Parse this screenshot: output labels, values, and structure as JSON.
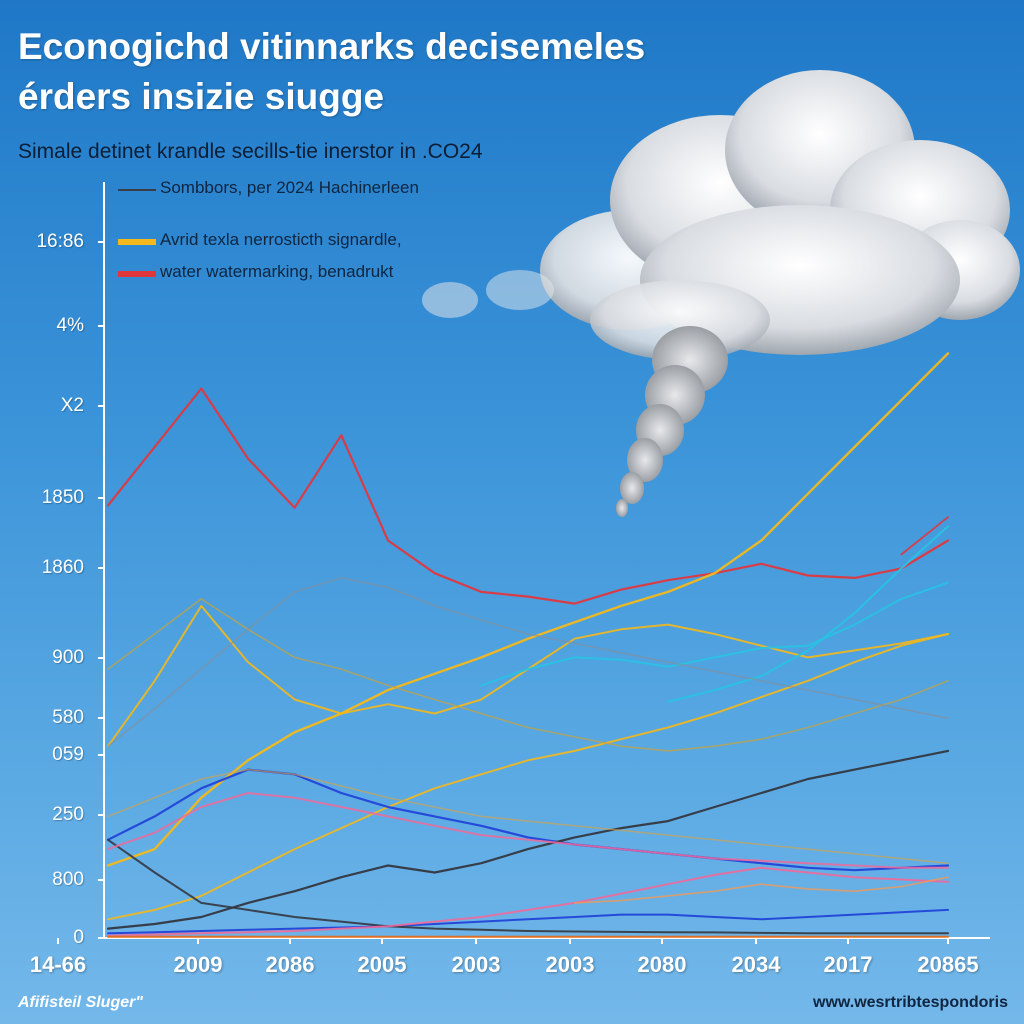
{
  "title_line1": "Econogichd vitinnarks decisemeles",
  "title_line2": "érders insizie siugge",
  "subtitle": "Simale detinet krandle secills-tie inerstor in .CO24",
  "footer_left": "Afifisteil Sluger\"",
  "footer_right": "www.wesrtribtespondoris",
  "colors": {
    "background_top": "#1f78c7",
    "background_bottom": "#74b8ea",
    "red": "#e0373d",
    "orange": "#f3b81b",
    "cyan": "#27c3e4",
    "dark": "#34373f",
    "pink": "#f06a9a",
    "blue": "#2245d8"
  },
  "legend": [
    {
      "label": "Sombbors, per 2024 Hachinerleen",
      "color": "#3b3d44",
      "style": "line"
    },
    {
      "label": "Avrid texla nerrosticth signardle,",
      "color": "#f3b81b",
      "style": "bar"
    },
    {
      "label": "water watermarking, benadrukt",
      "color": "#e0373d",
      "style": "bar"
    }
  ],
  "chart_data": {
    "type": "line",
    "title": "Econogichd vitinnarks decisemeles érders insizie siugge",
    "subtitle": "Simale detinet krandle secills-tie inerstor in .CO24",
    "y_tick_labels": [
      "16:86",
      "4%",
      "X2",
      "1850",
      "1860",
      "900",
      "580",
      "059",
      "250",
      "800",
      "0"
    ],
    "x_tick_labels": [
      "14-66",
      "2009",
      "2086",
      "2005",
      "2003",
      "2003",
      "2080",
      "2034",
      "2017",
      "20865"
    ],
    "grid": false,
    "legend_position": "top-left",
    "x": [
      0,
      0.5,
      1,
      1.5,
      2,
      2.5,
      3,
      3.5,
      4,
      4.5,
      5,
      5.5,
      6,
      6.5,
      7,
      7.5,
      8,
      8.5,
      9
    ],
    "series": [
      {
        "name": "water watermarking, benadrukt",
        "color": "#e0373d",
        "width": 2.2,
        "opacity": 0.95,
        "values": [
          1850,
          2100,
          2350,
          2050,
          1840,
          2150,
          1700,
          1560,
          1480,
          1460,
          1430,
          1490,
          1530,
          1560,
          1600,
          1550,
          1540,
          1580,
          1700
        ]
      },
      {
        "color": "#e0373d",
        "width": 1.8,
        "opacity": 0.9,
        "values": [
          null,
          null,
          null,
          null,
          null,
          null,
          null,
          null,
          null,
          null,
          null,
          null,
          null,
          null,
          null,
          null,
          null,
          1640,
          1800
        ]
      },
      {
        "name": "Avrid texla nerrosticth signardle,",
        "color": "#f3b81b",
        "width": 2.4,
        "opacity": 0.95,
        "values": [
          310,
          380,
          600,
          760,
          880,
          960,
          1060,
          1130,
          1200,
          1280,
          1350,
          1420,
          1480,
          1560,
          1700,
          1900,
          2100,
          2300,
          2500
        ]
      },
      {
        "color": "#f3b81b",
        "width": 2.0,
        "opacity": 0.9,
        "values": [
          820,
          1100,
          1420,
          1180,
          1020,
          960,
          1000,
          960,
          1020,
          1150,
          1280,
          1320,
          1340,
          1300,
          1250,
          1200,
          1230,
          1260,
          1300
        ]
      },
      {
        "color": "#f3b81b",
        "width": 2.0,
        "opacity": 0.9,
        "values": [
          80,
          120,
          180,
          280,
          380,
          470,
          560,
          640,
          700,
          760,
          800,
          850,
          900,
          960,
          1030,
          1100,
          1180,
          1250,
          1300
        ]
      },
      {
        "color": "#27c3e4",
        "width": 2.0,
        "opacity": 0.95,
        "values": [
          null,
          null,
          null,
          null,
          null,
          null,
          null,
          null,
          null,
          null,
          null,
          null,
          1010,
          1060,
          1120,
          1230,
          1390,
          1580,
          1760
        ]
      },
      {
        "color": "#27c3e4",
        "width": 2.0,
        "opacity": 0.9,
        "values": [
          null,
          null,
          null,
          null,
          null,
          null,
          null,
          null,
          1080,
          1150,
          1200,
          1190,
          1160,
          1200,
          1240,
          1250,
          1340,
          1450,
          1520
        ]
      },
      {
        "color": "#2245d8",
        "width": 2.2,
        "opacity": 0.95,
        "values": [
          420,
          520,
          640,
          720,
          700,
          620,
          560,
          520,
          480,
          430,
          400,
          380,
          360,
          340,
          320,
          300,
          290,
          300,
          310
        ]
      },
      {
        "color": "#2245d8",
        "width": 2.0,
        "opacity": 0.95,
        "values": [
          20,
          25,
          30,
          35,
          40,
          45,
          50,
          60,
          70,
          80,
          90,
          100,
          100,
          90,
          80,
          90,
          100,
          110,
          120
        ]
      },
      {
        "name": "Sombbors, per 2024 Hachinerleen",
        "color": "#34373f",
        "width": 2.2,
        "opacity": 0.95,
        "values": [
          40,
          60,
          90,
          150,
          200,
          260,
          310,
          280,
          320,
          380,
          430,
          470,
          500,
          560,
          620,
          680,
          720,
          760,
          800
        ]
      },
      {
        "color": "#34373f",
        "width": 2.0,
        "opacity": 0.9,
        "values": [
          420,
          280,
          150,
          120,
          90,
          70,
          50,
          40,
          35,
          30,
          28,
          26,
          25,
          24,
          22,
          20,
          20,
          20,
          20
        ]
      },
      {
        "color": "#f06a9a",
        "width": 2.0,
        "opacity": 0.9,
        "values": [
          10,
          15,
          20,
          25,
          30,
          40,
          50,
          70,
          90,
          120,
          150,
          190,
          230,
          270,
          300,
          280,
          260,
          250,
          240
        ]
      },
      {
        "color": "#f06a9a",
        "width": 2.0,
        "opacity": 0.85,
        "values": [
          380,
          450,
          560,
          620,
          600,
          560,
          520,
          480,
          440,
          420,
          400,
          380,
          360,
          340,
          330,
          320,
          310,
          300,
          300
        ]
      },
      {
        "color": "#c9a23a",
        "width": 1.6,
        "opacity": 0.7,
        "values": [
          1150,
          1300,
          1450,
          1320,
          1200,
          1150,
          1080,
          1020,
          960,
          900,
          860,
          820,
          800,
          820,
          850,
          900,
          960,
          1020,
          1100
        ]
      },
      {
        "color": "#8a8d96",
        "width": 1.6,
        "opacity": 0.6,
        "values": [
          820,
          980,
          1150,
          1320,
          1480,
          1540,
          1500,
          1420,
          1360,
          1300,
          1260,
          1220,
          1180,
          1140,
          1100,
          1060,
          1020,
          980,
          940
        ]
      },
      {
        "color": "#e0a23a",
        "width": 1.5,
        "opacity": 0.6,
        "values": [
          520,
          600,
          680,
          720,
          700,
          650,
          600,
          560,
          520,
          500,
          480,
          460,
          440,
          420,
          400,
          380,
          360,
          340,
          320
        ]
      },
      {
        "color": "#f39a55",
        "width": 1.6,
        "opacity": 0.8,
        "values": [
          null,
          null,
          null,
          null,
          null,
          null,
          null,
          null,
          null,
          null,
          150,
          160,
          180,
          200,
          230,
          210,
          200,
          220,
          260
        ]
      },
      {
        "color": "#e06a1a",
        "width": 2.0,
        "opacity": 0.95,
        "values": [
          5,
          5,
          5,
          5,
          5,
          5,
          5,
          5,
          5,
          5,
          5,
          5,
          5,
          5,
          5,
          5,
          5,
          5,
          5
        ]
      }
    ],
    "ylim": [
      0,
      2600
    ],
    "xlim": [
      0,
      9
    ]
  }
}
